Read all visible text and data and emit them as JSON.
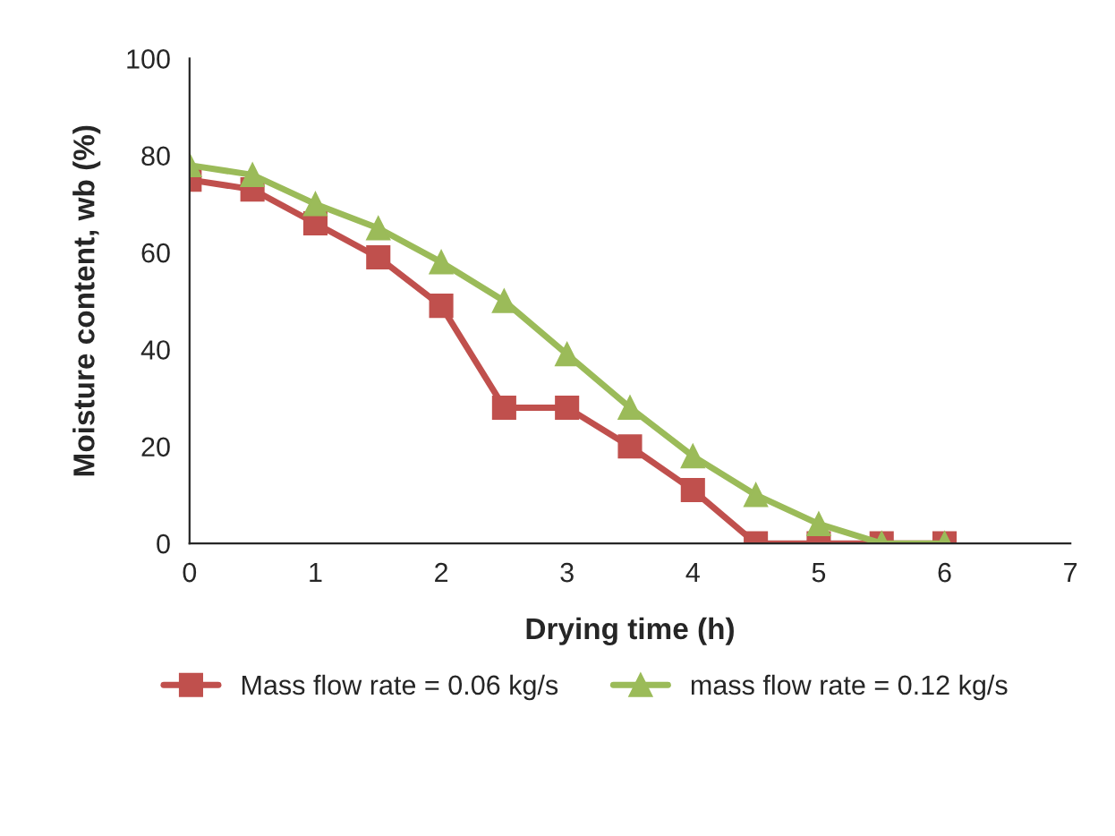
{
  "chart_data": {
    "type": "line",
    "xlabel": "Drying time (h)",
    "ylabel": "Moisture content, wb (%)",
    "x": [
      0,
      0.5,
      1,
      1.5,
      2,
      2.5,
      3,
      3.5,
      4,
      4.5,
      5,
      5.5,
      6
    ],
    "series": [
      {
        "name": "Mass flow rate = 0.06 kg/s",
        "color": "#c0504d",
        "marker": "square",
        "values": [
          75,
          73,
          66,
          59,
          49,
          28,
          28,
          20,
          11,
          0,
          0,
          0,
          0
        ]
      },
      {
        "name": "mass flow rate = 0.12 kg/s",
        "color": "#9bbb59",
        "marker": "triangle",
        "values": [
          78,
          76,
          70,
          65,
          58,
          50,
          39,
          28,
          18,
          10,
          4,
          0,
          0
        ]
      }
    ],
    "xlim": [
      0,
      7
    ],
    "xticks": [
      0,
      1,
      2,
      3,
      4,
      5,
      6,
      7
    ],
    "ylim": [
      0,
      100
    ],
    "yticks": [
      0,
      20,
      40,
      60,
      80,
      100
    ],
    "grid": false,
    "legend": "bottom",
    "line_style": "solid"
  }
}
